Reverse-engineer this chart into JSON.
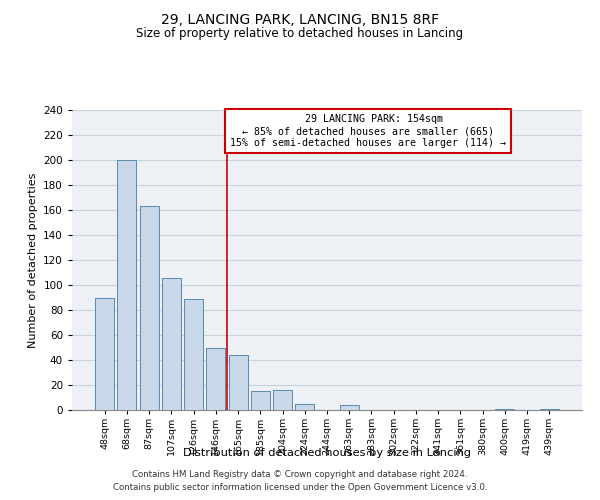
{
  "title": "29, LANCING PARK, LANCING, BN15 8RF",
  "subtitle": "Size of property relative to detached houses in Lancing",
  "xlabel": "Distribution of detached houses by size in Lancing",
  "ylabel": "Number of detached properties",
  "bar_labels": [
    "48sqm",
    "68sqm",
    "87sqm",
    "107sqm",
    "126sqm",
    "146sqm",
    "165sqm",
    "185sqm",
    "204sqm",
    "224sqm",
    "244sqm",
    "263sqm",
    "283sqm",
    "302sqm",
    "322sqm",
    "341sqm",
    "361sqm",
    "380sqm",
    "400sqm",
    "419sqm",
    "439sqm"
  ],
  "bar_values": [
    90,
    200,
    163,
    106,
    89,
    50,
    44,
    15,
    16,
    5,
    0,
    4,
    0,
    0,
    0,
    0,
    0,
    0,
    1,
    0,
    1
  ],
  "bar_color": "#c8d8e8",
  "bar_edge_color": "#5a8ab0",
  "ylim": [
    0,
    240
  ],
  "yticks": [
    0,
    20,
    40,
    60,
    80,
    100,
    120,
    140,
    160,
    180,
    200,
    220,
    240
  ],
  "property_line_x": 5.5,
  "property_line_color": "#cc0000",
  "annotation_line1": "  29 LANCING PARK: 154sqm",
  "annotation_line2": "← 85% of detached houses are smaller (665)",
  "annotation_line3": "15% of semi-detached houses are larger (114) →",
  "footer_line1": "Contains HM Land Registry data © Crown copyright and database right 2024.",
  "footer_line2": "Contains public sector information licensed under the Open Government Licence v3.0.",
  "grid_color": "#c8d4dc",
  "background_color": "#edf0f5"
}
